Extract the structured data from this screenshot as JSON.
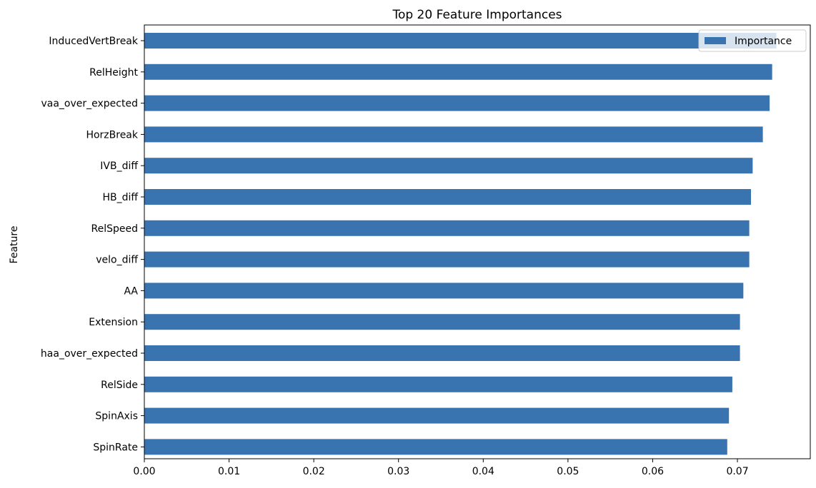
{
  "chart_data": {
    "type": "bar",
    "orientation": "horizontal",
    "title": "Top 20 Feature Importances",
    "xlabel": "",
    "ylabel": "Feature",
    "categories": [
      "InducedVertBreak",
      "RelHeight",
      "vaa_over_expected",
      "HorzBreak",
      "IVB_diff",
      "HB_diff",
      "RelSpeed",
      "velo_diff",
      "AA",
      "Extension",
      "haa_over_expected",
      "RelSide",
      "SpinAxis",
      "SpinRate"
    ],
    "series": [
      {
        "name": "Importance",
        "color": "#3a74b0",
        "values": [
          0.0746,
          0.0741,
          0.0738,
          0.073,
          0.0718,
          0.0716,
          0.0714,
          0.0714,
          0.0707,
          0.0703,
          0.0703,
          0.0694,
          0.069,
          0.0688
        ]
      }
    ],
    "xlim": [
      0,
      0.0786
    ],
    "xticks": [
      0.0,
      0.01,
      0.02,
      0.03,
      0.04,
      0.05,
      0.06,
      0.07
    ],
    "xtick_labels": [
      "0.00",
      "0.01",
      "0.02",
      "0.03",
      "0.04",
      "0.05",
      "0.06",
      "0.07"
    ],
    "grid": false,
    "legend": {
      "placement": "top-right",
      "entries": [
        "Importance"
      ]
    }
  }
}
